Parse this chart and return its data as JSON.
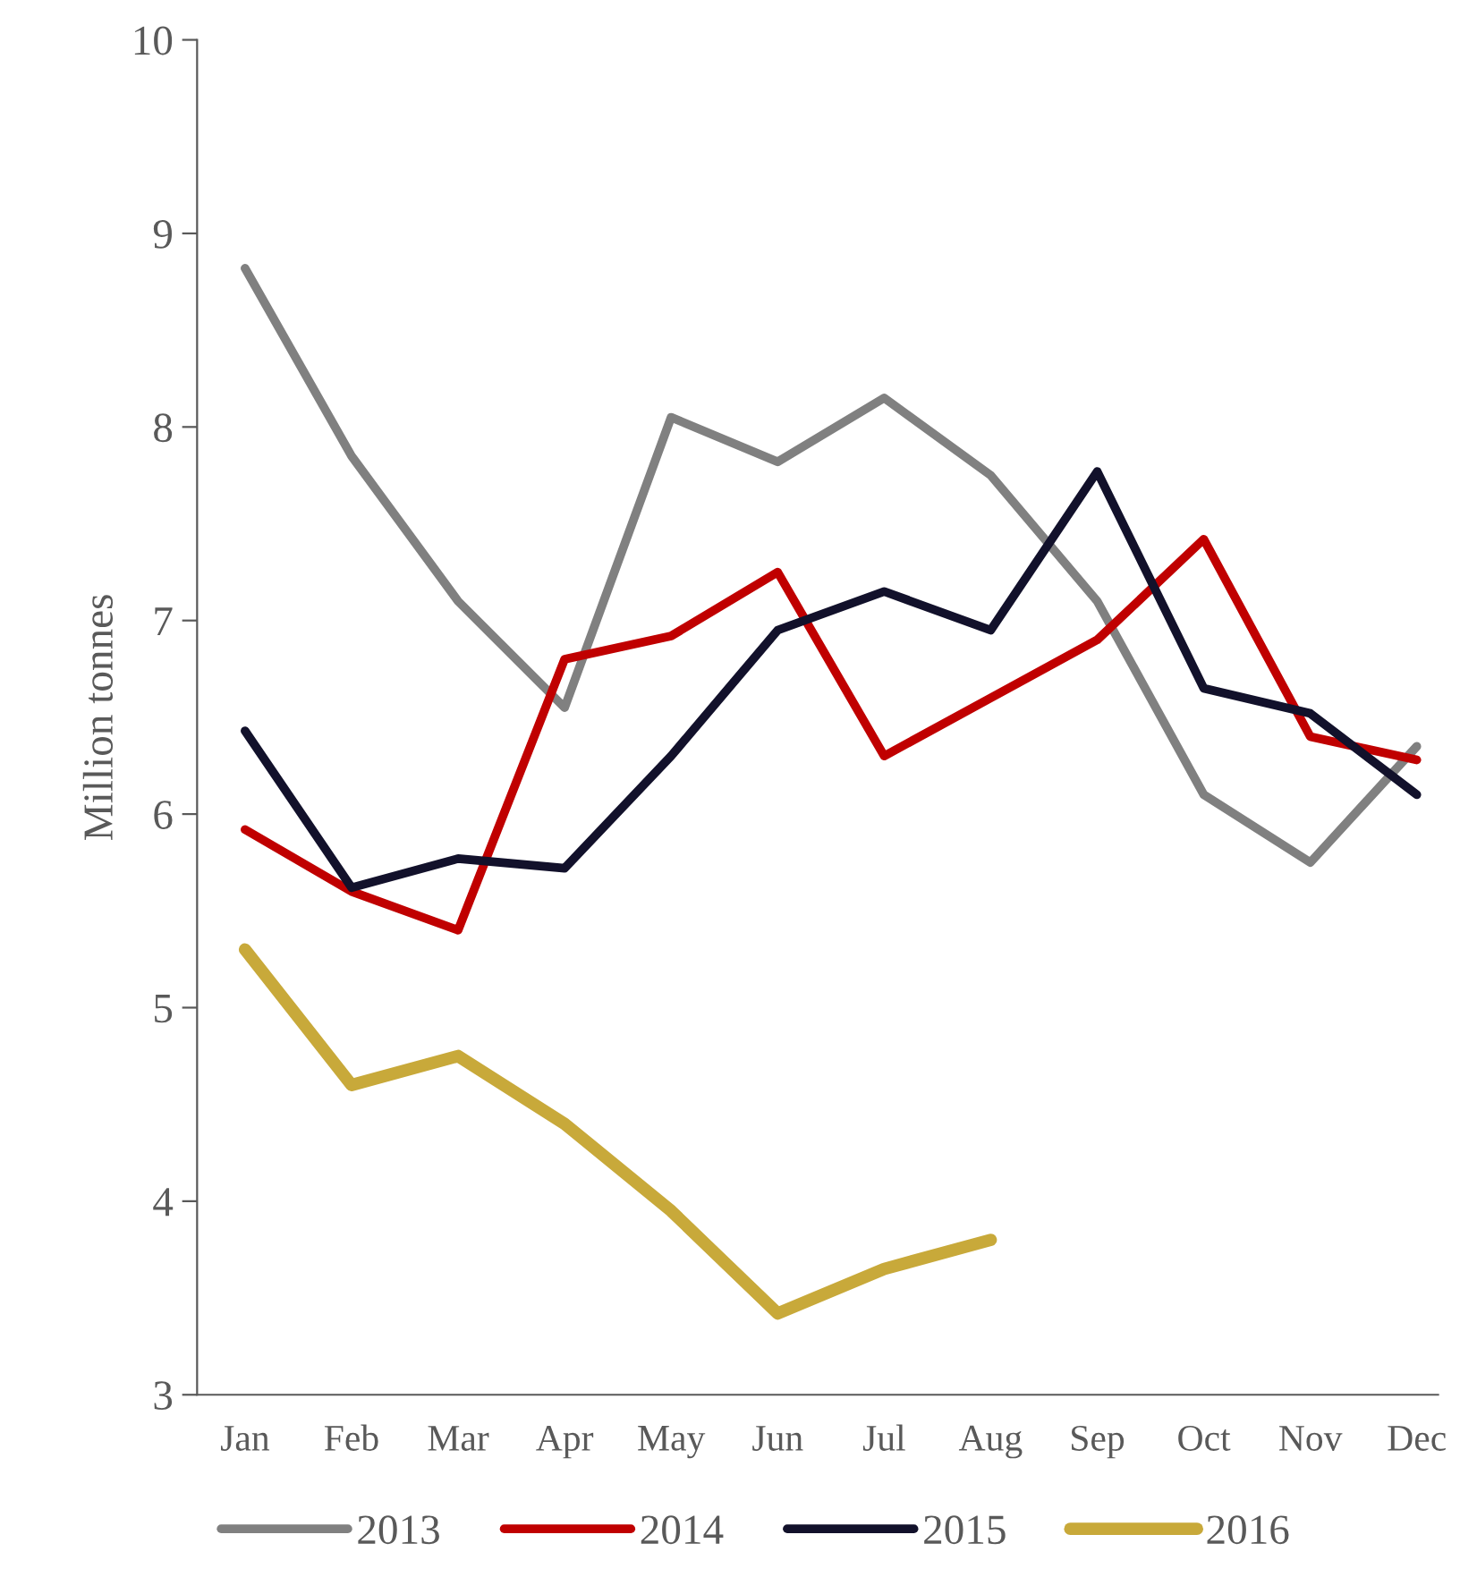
{
  "chart_data": {
    "type": "line",
    "ylabel": "Million tonnes",
    "categories": [
      "Jan",
      "Feb",
      "Mar",
      "Apr",
      "May",
      "Jun",
      "Jul",
      "Aug",
      "Sep",
      "Oct",
      "Nov",
      "Dec"
    ],
    "series": [
      {
        "name": "2013",
        "color": "#808080",
        "values": [
          8.82,
          7.85,
          7.1,
          6.55,
          8.05,
          7.82,
          8.15,
          7.75,
          7.1,
          6.1,
          5.75,
          6.35
        ]
      },
      {
        "name": "2014",
        "color": "#c00000",
        "values": [
          5.92,
          5.6,
          5.4,
          6.8,
          6.92,
          7.25,
          6.3,
          6.6,
          6.9,
          7.42,
          6.4,
          6.28
        ]
      },
      {
        "name": "2015",
        "color": "#12112b",
        "values": [
          6.43,
          5.62,
          5.77,
          5.72,
          6.3,
          6.95,
          7.15,
          6.95,
          7.77,
          6.65,
          6.52,
          6.1
        ]
      },
      {
        "name": "2016",
        "color": "#c8a93a",
        "values": [
          5.3,
          4.6,
          4.75,
          4.4,
          3.95,
          3.42,
          3.65,
          3.8,
          null,
          null,
          null,
          null
        ]
      }
    ],
    "ylim": [
      3,
      10
    ],
    "yticks": [
      3,
      4,
      5,
      6,
      7,
      8,
      9,
      10
    ],
    "grid": false,
    "legend": "bottom",
    "line_style": "solid"
  }
}
